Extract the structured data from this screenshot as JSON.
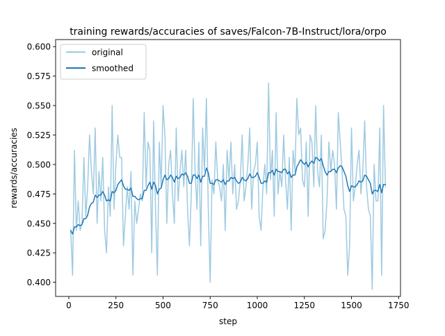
{
  "colors": {
    "original": "#9ecae1",
    "smoothed": "#1f77b4"
  },
  "chart_data": {
    "type": "line",
    "title": "training rewards/accuracies of saves/Falcon-7B-Instruct/lora/orpo",
    "xlabel": "step",
    "ylabel": "rewards/accuracies",
    "xlim": [
      -70,
      1760
    ],
    "ylim": [
      0.388,
      0.606
    ],
    "xticks": [
      0,
      250,
      500,
      750,
      1000,
      1250,
      1500,
      1750
    ],
    "yticks": [
      0.4,
      0.425,
      0.45,
      0.475,
      0.5,
      0.525,
      0.55,
      0.575,
      0.6
    ],
    "xtick_labels": [
      "0",
      "250",
      "500",
      "750",
      "1000",
      "1250",
      "1500",
      "1750"
    ],
    "ytick_labels": [
      "0.400",
      "0.425",
      "0.450",
      "0.475",
      "0.500",
      "0.525",
      "0.550",
      "0.575",
      "0.600"
    ],
    "grid": false,
    "legend_position": "top-left",
    "series": [
      {
        "name": "original",
        "x": [
          10,
          20,
          30,
          40,
          50,
          60,
          70,
          80,
          90,
          100,
          110,
          120,
          130,
          140,
          150,
          160,
          170,
          180,
          190,
          200,
          210,
          220,
          230,
          240,
          250,
          260,
          270,
          280,
          290,
          300,
          310,
          320,
          330,
          340,
          350,
          360,
          370,
          380,
          390,
          400,
          410,
          420,
          430,
          440,
          450,
          460,
          470,
          480,
          490,
          500,
          510,
          520,
          530,
          540,
          550,
          560,
          570,
          580,
          590,
          600,
          610,
          620,
          630,
          640,
          650,
          660,
          670,
          680,
          690,
          700,
          710,
          720,
          730,
          740,
          750,
          760,
          770,
          780,
          790,
          800,
          810,
          820,
          830,
          840,
          850,
          860,
          870,
          880,
          890,
          900,
          910,
          920,
          930,
          940,
          950,
          960,
          970,
          980,
          990,
          1000,
          1010,
          1020,
          1030,
          1040,
          1050,
          1060,
          1070,
          1080,
          1090,
          1100,
          1110,
          1120,
          1130,
          1140,
          1150,
          1160,
          1170,
          1180,
          1190,
          1200,
          1210,
          1220,
          1230,
          1240,
          1250,
          1260,
          1270,
          1280,
          1290,
          1300,
          1310,
          1320,
          1330,
          1340,
          1350,
          1360,
          1370,
          1380,
          1390,
          1400,
          1410,
          1420,
          1430,
          1440,
          1450,
          1460,
          1470,
          1480,
          1490,
          1500,
          1510,
          1520,
          1530,
          1540,
          1550,
          1560,
          1570,
          1580,
          1590,
          1600,
          1610,
          1620,
          1630,
          1640,
          1650,
          1660,
          1670,
          1680
        ],
        "values": [
          0.444,
          0.406,
          0.512,
          0.444,
          0.469,
          0.444,
          0.45,
          0.506,
          0.456,
          0.481,
          0.525,
          0.494,
          0.475,
          0.531,
          0.45,
          0.494,
          0.469,
          0.506,
          0.444,
          0.425,
          0.481,
          0.456,
          0.55,
          0.462,
          0.5,
          0.525,
          0.506,
          0.506,
          0.431,
          0.456,
          0.481,
          0.462,
          0.494,
          0.406,
          0.469,
          0.45,
          0.462,
          0.475,
          0.469,
          0.544,
          0.481,
          0.519,
          0.512,
          0.425,
          0.537,
          0.462,
          0.406,
          0.519,
          0.481,
          0.55,
          0.525,
          0.45,
          0.5,
          0.512,
          0.475,
          0.45,
          0.531,
          0.469,
          0.494,
          0.512,
          0.481,
          0.512,
          0.462,
          0.431,
          0.475,
          0.556,
          0.494,
          0.462,
          0.519,
          0.431,
          0.531,
          0.494,
          0.556,
          0.462,
          0.4,
          0.487,
          0.475,
          0.519,
          0.487,
          0.481,
          0.469,
          0.5,
          0.444,
          0.512,
          0.487,
          0.519,
          0.475,
          0.5,
          0.462,
          0.469,
          0.487,
          0.525,
          0.469,
          0.481,
          0.5,
          0.531,
          0.462,
          0.494,
          0.5,
          0.519,
          0.456,
          0.444,
          0.481,
          0.5,
          0.475,
          0.569,
          0.487,
          0.512,
          0.456,
          0.544,
          0.475,
          0.494,
          0.481,
          0.525,
          0.487,
          0.462,
          0.506,
          0.444,
          0.512,
          0.494,
          0.556,
          0.525,
          0.531,
          0.487,
          0.481,
          0.519,
          0.456,
          0.525,
          0.519,
          0.481,
          0.55,
          0.494,
          0.481,
          0.525,
          0.437,
          0.444,
          0.469,
          0.519,
          0.494,
          0.512,
          0.5,
          0.462,
          0.544,
          0.519,
          0.494,
          0.462,
          0.456,
          0.406,
          0.431,
          0.531,
          0.469,
          0.481,
          0.5,
          0.512,
          0.475,
          0.494,
          0.537,
          0.481,
          0.462,
          0.456,
          0.394,
          0.5,
          0.469,
          0.469,
          0.531,
          0.406,
          0.55,
          0.481
        ]
      },
      {
        "name": "smoothed",
        "x": [
          10,
          20,
          30,
          40,
          50,
          60,
          70,
          80,
          90,
          100,
          110,
          120,
          130,
          140,
          150,
          160,
          170,
          180,
          190,
          200,
          210,
          220,
          230,
          240,
          250,
          260,
          270,
          280,
          290,
          300,
          310,
          320,
          330,
          340,
          350,
          360,
          370,
          380,
          390,
          400,
          410,
          420,
          430,
          440,
          450,
          460,
          470,
          480,
          490,
          500,
          510,
          520,
          530,
          540,
          550,
          560,
          570,
          580,
          590,
          600,
          610,
          620,
          630,
          640,
          650,
          660,
          670,
          680,
          690,
          700,
          710,
          720,
          730,
          740,
          750,
          760,
          770,
          780,
          790,
          800,
          810,
          820,
          830,
          840,
          850,
          860,
          870,
          880,
          890,
          900,
          910,
          920,
          930,
          940,
          950,
          960,
          970,
          980,
          990,
          1000,
          1010,
          1020,
          1030,
          1040,
          1050,
          1060,
          1070,
          1080,
          1090,
          1100,
          1110,
          1120,
          1130,
          1140,
          1150,
          1160,
          1170,
          1180,
          1190,
          1200,
          1210,
          1220,
          1230,
          1240,
          1250,
          1260,
          1270,
          1280,
          1290,
          1300,
          1310,
          1320,
          1330,
          1340,
          1350,
          1360,
          1370,
          1380,
          1390,
          1400,
          1410,
          1420,
          1430,
          1440,
          1450,
          1460,
          1470,
          1480,
          1490,
          1500,
          1510,
          1520,
          1530,
          1540,
          1550,
          1560,
          1570,
          1580,
          1590,
          1600,
          1610,
          1620,
          1630,
          1640,
          1650,
          1660,
          1670,
          1680
        ],
        "values": [
          0.444,
          0.441,
          0.447,
          0.447,
          0.449,
          0.448,
          0.449,
          0.454,
          0.454,
          0.457,
          0.464,
          0.467,
          0.468,
          0.474,
          0.472,
          0.474,
          0.474,
          0.477,
          0.474,
          0.469,
          0.47,
          0.469,
          0.477,
          0.476,
          0.478,
          0.483,
          0.485,
          0.487,
          0.482,
          0.479,
          0.479,
          0.478,
          0.48,
          0.473,
          0.473,
          0.471,
          0.47,
          0.471,
          0.471,
          0.478,
          0.478,
          0.482,
          0.485,
          0.479,
          0.485,
          0.482,
          0.475,
          0.479,
          0.48,
          0.487,
          0.491,
          0.487,
          0.488,
          0.491,
          0.489,
          0.485,
          0.49,
          0.488,
          0.489,
          0.492,
          0.491,
          0.493,
          0.49,
          0.484,
          0.484,
          0.491,
          0.491,
          0.488,
          0.491,
          0.485,
          0.49,
          0.49,
          0.497,
          0.493,
          0.484,
          0.484,
          0.483,
          0.487,
          0.487,
          0.486,
          0.485,
          0.487,
          0.483,
          0.486,
          0.486,
          0.489,
          0.488,
          0.489,
          0.486,
          0.484,
          0.485,
          0.489,
          0.487,
          0.486,
          0.488,
          0.492,
          0.489,
          0.489,
          0.49,
          0.493,
          0.489,
          0.484,
          0.484,
          0.486,
          0.485,
          0.493,
          0.493,
          0.495,
          0.491,
          0.496,
          0.494,
          0.494,
          0.493,
          0.496,
          0.496,
          0.492,
          0.494,
          0.489,
          0.491,
          0.491,
          0.498,
          0.501,
          0.504,
          0.502,
          0.5,
          0.502,
          0.498,
          0.501,
          0.503,
          0.501,
          0.506,
          0.505,
          0.503,
          0.505,
          0.499,
          0.494,
          0.491,
          0.494,
          0.494,
          0.496,
          0.496,
          0.493,
          0.497,
          0.499,
          0.498,
          0.494,
          0.49,
          0.482,
          0.477,
          0.482,
          0.481,
          0.481,
          0.483,
          0.486,
          0.485,
          0.486,
          0.491,
          0.49,
          0.487,
          0.484,
          0.475,
          0.478,
          0.478,
          0.477,
          0.483,
          0.476,
          0.483,
          0.483
        ]
      }
    ]
  }
}
